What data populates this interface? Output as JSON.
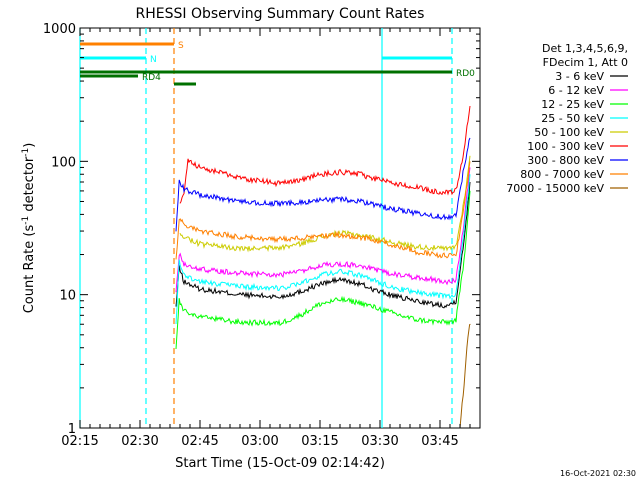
{
  "chart_data": {
    "type": "line",
    "title": "RHESSI Observing Summary Count Rates",
    "xlabel": "Start Time (15-Oct-09 02:14:42)",
    "ylabel_main": "Count Rate (s",
    "ylabel_sup1": "-1",
    "ylabel_mid": " detector",
    "ylabel_sup2": "-1",
    "ylabel_end": ")",
    "footer": "16-Oct-2021 02:30",
    "x_range_minutes": [
      0,
      100
    ],
    "y_scale": "log",
    "ylim": [
      1,
      1000
    ],
    "x_ticks": [
      {
        "value": 0,
        "label": "02:15"
      },
      {
        "value": 15,
        "label": "02:30"
      },
      {
        "value": 30,
        "label": "02:45"
      },
      {
        "value": 45,
        "label": "03:00"
      },
      {
        "value": 60,
        "label": "03:15"
      },
      {
        "value": 75,
        "label": "03:30"
      },
      {
        "value": 90,
        "label": "03:45"
      }
    ],
    "y_ticks": [
      {
        "value": 1,
        "label": "1"
      },
      {
        "value": 10,
        "label": "10"
      },
      {
        "value": 100,
        "label": "100"
      },
      {
        "value": 1000,
        "label": "1000"
      }
    ],
    "legend": {
      "placement": "top-right",
      "header": [
        "Det 1,3,4,5,6,9,",
        "FDecim 1, Att 0"
      ]
    },
    "series": [
      {
        "name": "3 - 6 keV",
        "color": "#000000",
        "x": [
          24,
          24.8,
          26,
          30,
          40,
          50,
          55,
          60,
          65,
          70,
          75,
          80,
          84,
          88,
          92,
          94,
          96,
          97.5
        ],
        "y": [
          8,
          16,
          12.5,
          11,
          10,
          9.6,
          10.5,
          12,
          13,
          12,
          10.5,
          9.5,
          9,
          8.5,
          8.3,
          9,
          25,
          70
        ]
      },
      {
        "name": "6 - 12 keV",
        "color": "#ff00ff",
        "x": [
          24,
          24.8,
          26,
          30,
          40,
          50,
          55,
          60,
          65,
          70,
          75,
          80,
          84,
          88,
          92,
          94,
          96,
          97.5
        ],
        "y": [
          10,
          20,
          17,
          15.5,
          14.5,
          14,
          15,
          16.5,
          17,
          16.5,
          15,
          14,
          13.5,
          13,
          12.5,
          13,
          35,
          90
        ]
      },
      {
        "name": "12 - 25 keV",
        "color": "#00ff00",
        "x": [
          24,
          24.8,
          26,
          30,
          40,
          50,
          55,
          60,
          65,
          70,
          75,
          80,
          84,
          88,
          92,
          94,
          96,
          97.5
        ],
        "y": [
          4,
          9,
          7.5,
          6.8,
          6.2,
          6.1,
          7,
          8.5,
          9.2,
          8.7,
          7.8,
          7,
          6.5,
          6.3,
          6.2,
          6.4,
          18,
          60
        ]
      },
      {
        "name": "25 - 50 keV",
        "color": "#00ffff",
        "x": [
          24,
          24.8,
          26,
          30,
          40,
          50,
          55,
          60,
          65,
          70,
          75,
          80,
          84,
          88,
          92,
          94,
          96,
          97.5
        ],
        "y": [
          6,
          18,
          14,
          12.5,
          11.5,
          11.2,
          12,
          14,
          15,
          14,
          12.3,
          11,
          10.5,
          10,
          9.7,
          10,
          30,
          80
        ]
      },
      {
        "name": "50 - 100 keV",
        "color": "#cccc00",
        "x": [
          25,
          30,
          40,
          50,
          55,
          60,
          65,
          70,
          75,
          80,
          84,
          88,
          92,
          94,
          96,
          97.5
        ],
        "y": [
          28,
          24,
          22,
          22.5,
          24,
          27,
          29,
          28,
          26,
          24,
          23,
          22.5,
          22,
          23,
          50,
          110
        ]
      },
      {
        "name": "100 - 300 keV",
        "color": "#ff0000",
        "x": [
          25,
          26,
          27,
          30,
          40,
          50,
          55,
          60,
          65,
          70,
          75,
          80,
          84,
          88,
          92,
          94,
          96,
          97.5
        ],
        "y": [
          50,
          58,
          100,
          90,
          75,
          68,
          72,
          80,
          83,
          80,
          72,
          67,
          64,
          60,
          58,
          60,
          120,
          260
        ]
      },
      {
        "name": "300 - 800 keV",
        "color": "#0000ff",
        "x": [
          24,
          24.8,
          26,
          30,
          40,
          50,
          55,
          60,
          65,
          70,
          75,
          80,
          84,
          88,
          92,
          94,
          96,
          97.5
        ],
        "y": [
          30,
          70,
          62,
          56,
          50,
          48,
          49,
          51,
          52,
          50,
          46,
          43,
          41,
          39,
          38,
          40,
          90,
          150
        ]
      },
      {
        "name": "800 - 7000 keV",
        "color": "#ff8000",
        "x": [
          24,
          24.8,
          26,
          30,
          40,
          50,
          55,
          60,
          65,
          70,
          75,
          80,
          84,
          88,
          92,
          94,
          96,
          97.5
        ],
        "y": [
          18,
          38,
          33,
          30,
          27,
          26,
          26.5,
          27.5,
          28,
          27,
          25,
          23,
          21,
          20,
          19.5,
          20,
          45,
          100
        ]
      },
      {
        "name": "7000 - 15000 keV",
        "color": "#a06000",
        "x": [
          95,
          95.8,
          96.5,
          97.2,
          97.6
        ],
        "y": [
          1,
          1.8,
          3.2,
          5.5,
          6
        ]
      }
    ],
    "mode_bars": [
      {
        "label": "S",
        "color": "#ff8000",
        "start": 0,
        "end": 23.5,
        "y_frac": 0.04
      },
      {
        "label": "N",
        "color": "#00ffff",
        "start": 0,
        "end": 16.5,
        "y_frac": 0.075
      },
      {
        "label": "",
        "color": "#00ffff",
        "start": 75.5,
        "end": 93,
        "y_frac": 0.075
      },
      {
        "label": "RD0",
        "color": "#007000",
        "start": 0,
        "end": 93,
        "y_frac": 0.11
      },
      {
        "label": "RD4",
        "color": "#007000",
        "start": 0,
        "end": 14.5,
        "y_frac": 0.12
      },
      {
        "label": "",
        "color": "#007000",
        "start": 23.5,
        "end": 29,
        "y_frac": 0.14
      }
    ],
    "vertical_markers": [
      {
        "x": 0,
        "color": "#00ffff",
        "style": "solid"
      },
      {
        "x": 16.5,
        "color": "#00ffff",
        "style": "dashed"
      },
      {
        "x": 23.5,
        "color": "#ff8000",
        "style": "dashed"
      },
      {
        "x": 75.5,
        "color": "#00ffff",
        "style": "solid"
      },
      {
        "x": 93,
        "color": "#00ffff",
        "style": "dashed"
      }
    ]
  }
}
